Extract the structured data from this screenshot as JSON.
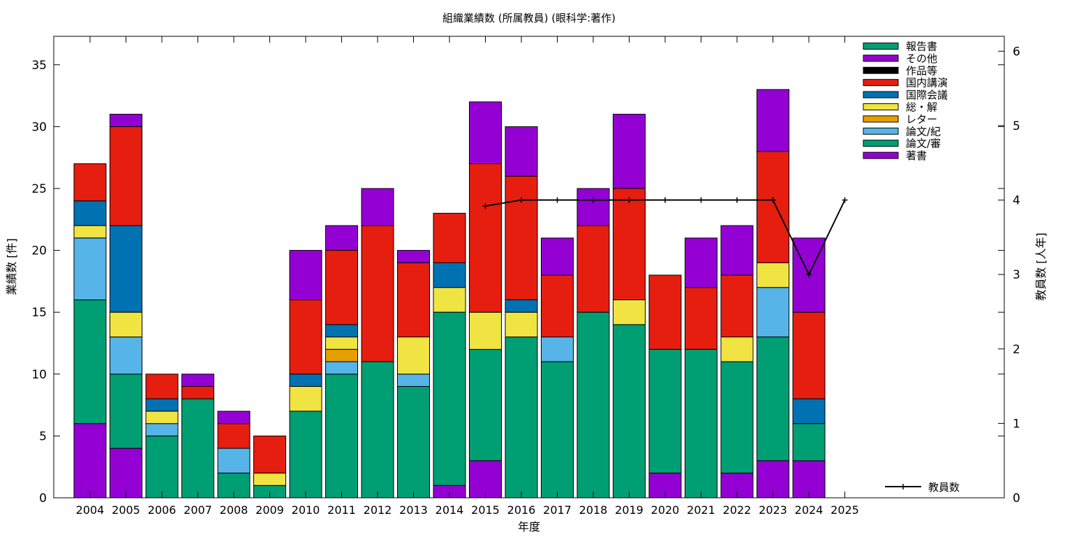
{
  "chart_data": {
    "type": "bar",
    "stacked": true,
    "title": "組織業績数 (所属教員) (眼科学:著作)",
    "xlabel": "年度",
    "ylabel": "業績数 [件]",
    "y2label": "教員数 [人年]",
    "ylim": [
      0,
      37.3
    ],
    "y2lim": [
      0,
      6.2
    ],
    "yticks": [
      0,
      5,
      10,
      15,
      20,
      25,
      30,
      35
    ],
    "y2ticks": [
      0,
      1,
      2,
      3,
      4,
      5,
      6
    ],
    "grid": false,
    "legend_position": "top-right",
    "categories": [
      "2004",
      "2005",
      "2006",
      "2007",
      "2008",
      "2009",
      "2010",
      "2011",
      "2012",
      "2013",
      "2014",
      "2015",
      "2016",
      "2017",
      "2018",
      "2019",
      "2020",
      "2021",
      "2022",
      "2023",
      "2024",
      "2025"
    ],
    "series": [
      {
        "name": "著書",
        "color": "#9400d3",
        "values": [
          6,
          4,
          0,
          0,
          0,
          0,
          0,
          0,
          0,
          0,
          1,
          3,
          0,
          0,
          0,
          0,
          2,
          0,
          2,
          3,
          3,
          0
        ]
      },
      {
        "name": "論文/審",
        "color": "#009e73",
        "values": [
          10,
          6,
          5,
          8,
          2,
          1,
          7,
          10,
          11,
          9,
          14,
          9,
          13,
          11,
          15,
          14,
          10,
          12,
          9,
          10,
          3,
          0
        ]
      },
      {
        "name": "論文/紀",
        "color": "#56b4e9",
        "values": [
          5,
          3,
          1,
          0,
          2,
          0,
          0,
          1,
          0,
          1,
          0,
          0,
          0,
          2,
          0,
          0,
          0,
          0,
          0,
          4,
          0,
          0
        ]
      },
      {
        "name": "レター",
        "color": "#e69f00",
        "values": [
          0,
          0,
          0,
          0,
          0,
          0,
          0,
          1,
          0,
          0,
          0,
          0,
          0,
          0,
          0,
          0,
          0,
          0,
          0,
          0,
          0,
          0
        ]
      },
      {
        "name": "総・解",
        "color": "#f0e442",
        "values": [
          1,
          2,
          1,
          0,
          0,
          1,
          2,
          1,
          0,
          3,
          2,
          3,
          2,
          0,
          0,
          2,
          0,
          0,
          2,
          2,
          0,
          0
        ]
      },
      {
        "name": "国際会議",
        "color": "#0072b2",
        "values": [
          2,
          7,
          1,
          0,
          0,
          0,
          1,
          1,
          0,
          0,
          2,
          0,
          1,
          0,
          0,
          0,
          0,
          0,
          0,
          0,
          2,
          0
        ]
      },
      {
        "name": "国内講演",
        "color": "#e51e10",
        "values": [
          3,
          8,
          2,
          1,
          2,
          3,
          6,
          6,
          11,
          6,
          4,
          12,
          10,
          5,
          7,
          9,
          6,
          5,
          5,
          9,
          7,
          0
        ]
      },
      {
        "name": "作品等",
        "color": "#000000",
        "values": [
          0,
          0,
          0,
          0,
          0,
          0,
          0,
          0,
          0,
          0,
          0,
          0,
          0,
          0,
          0,
          0,
          0,
          0,
          0,
          0,
          0,
          0
        ]
      },
      {
        "name": "その他",
        "color": "#9400d3",
        "values": [
          0,
          1,
          0,
          1,
          1,
          0,
          4,
          2,
          3,
          1,
          0,
          5,
          4,
          3,
          3,
          6,
          0,
          4,
          4,
          5,
          6,
          0
        ]
      },
      {
        "name": "報告書",
        "color": "#009e73",
        "values": [
          0,
          0,
          0,
          0,
          0,
          0,
          0,
          0,
          0,
          0,
          0,
          0,
          0,
          0,
          0,
          0,
          0,
          0,
          0,
          0,
          0,
          0
        ]
      }
    ],
    "line_series": {
      "name": "教員数",
      "axis": "y2",
      "color": "#000000",
      "x": [
        "2015",
        "2016",
        "2017",
        "2018",
        "2019",
        "2020",
        "2021",
        "2022",
        "2023",
        "2024",
        "2025"
      ],
      "values": [
        3.92,
        4,
        4,
        4,
        4,
        4,
        4,
        4,
        4,
        3,
        4
      ]
    },
    "legend_order": [
      "報告書",
      "その他",
      "作品等",
      "国内講演",
      "国際会議",
      "総・解",
      "レター",
      "論文/紀",
      "論文/審",
      "著書"
    ]
  }
}
